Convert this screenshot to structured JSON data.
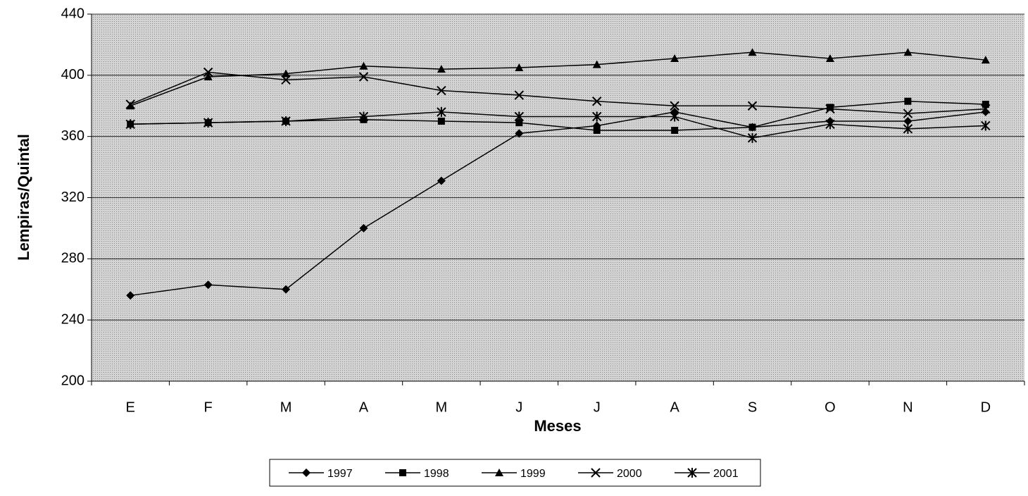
{
  "chart_data": {
    "type": "line",
    "y_label": "Lempiras/Quintal",
    "x_label": "Meses",
    "categories": [
      "E",
      "F",
      "M",
      "A",
      "M",
      "J",
      "J",
      "A",
      "S",
      "O",
      "N",
      "D"
    ],
    "series": [
      {
        "name": "1997",
        "color": "#000000",
        "marker": "diamond",
        "values": [
          256,
          263,
          260,
          300,
          331,
          362,
          367,
          376,
          366,
          370,
          370,
          376
        ]
      },
      {
        "name": "1998",
        "color": "#000000",
        "marker": "square",
        "values": [
          368,
          369,
          370,
          371,
          370,
          369,
          364,
          364,
          366,
          379,
          383,
          381
        ]
      },
      {
        "name": "1999",
        "color": "#000000",
        "marker": "triangle",
        "values": [
          380,
          399,
          401,
          406,
          404,
          405,
          407,
          411,
          415,
          411,
          415,
          410
        ]
      },
      {
        "name": "2000",
        "color": "#000000",
        "marker": "x",
        "values": [
          381,
          402,
          397,
          399,
          390,
          387,
          383,
          380,
          380,
          378,
          375,
          378
        ]
      },
      {
        "name": "2001",
        "color": "#000000",
        "marker": "asterisk",
        "values": [
          368,
          369,
          370,
          373,
          376,
          373,
          373,
          373,
          359,
          368,
          365,
          367
        ]
      }
    ],
    "ylim": [
      200,
      440
    ],
    "yticks": [
      200,
      240,
      280,
      320,
      360,
      400,
      440
    ],
    "grid": true,
    "legend": "bottom"
  }
}
